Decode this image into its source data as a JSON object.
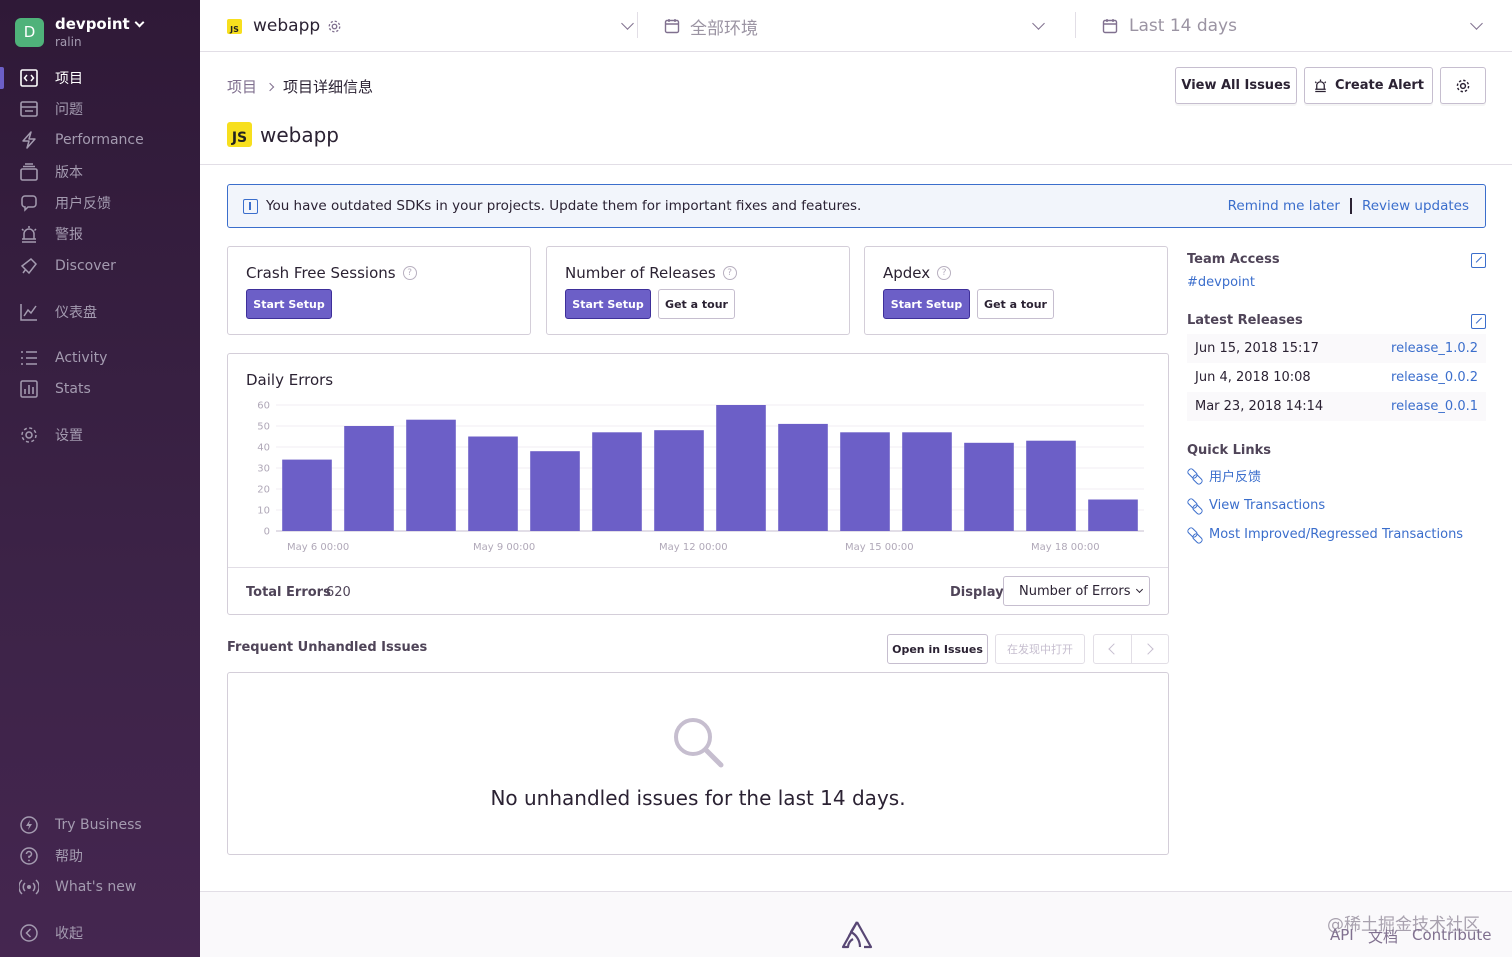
{
  "sidebar": {
    "org_initial": "D",
    "org_name": "devpoint",
    "username": "ralin",
    "items": [
      {
        "label": "项目",
        "icon": "project-icon"
      },
      {
        "label": "问题",
        "icon": "issues-icon"
      },
      {
        "label": "Performance",
        "icon": "lightning-icon"
      },
      {
        "label": "版本",
        "icon": "releases-icon"
      },
      {
        "label": "用户反馈",
        "icon": "feedback-icon"
      },
      {
        "label": "警报",
        "icon": "siren-icon"
      },
      {
        "label": "Discover",
        "icon": "telescope-icon"
      },
      {
        "label": "仪表盘",
        "icon": "graph-icon"
      },
      {
        "label": "Activity",
        "icon": "list-icon"
      },
      {
        "label": "Stats",
        "icon": "bar-chart-icon"
      },
      {
        "label": "设置",
        "icon": "gear-icon"
      }
    ],
    "bottom": [
      {
        "label": "Try Business",
        "icon": "lightning-circle-icon"
      },
      {
        "label": "帮助",
        "icon": "question-circle-icon"
      },
      {
        "label": "What's new",
        "icon": "broadcast-icon"
      },
      {
        "label": "收起",
        "icon": "collapse-icon"
      }
    ]
  },
  "topbar": {
    "project_badge": "JS",
    "project": "webapp",
    "environment": "全部环境",
    "time_range": "Last 14 days"
  },
  "header": {
    "breadcrumb_root": "项目",
    "breadcrumb_current": "项目详细信息",
    "project_badge": "JS",
    "title": "webapp",
    "view_all_issues": "View All Issues",
    "create_alert": "Create Alert"
  },
  "alert": {
    "message": "You have outdated SDKs in your projects. Update them for important fixes and features.",
    "remind_later": "Remind me later",
    "review_updates": "Review updates"
  },
  "cards": [
    {
      "title": "Crash Free Sessions",
      "primary": "Start Setup"
    },
    {
      "title": "Number of Releases",
      "primary": "Start Setup",
      "secondary": "Get a tour"
    },
    {
      "title": "Apdex",
      "primary": "Start Setup",
      "secondary": "Get a tour"
    }
  ],
  "chart_data": {
    "type": "bar",
    "title": "Daily Errors",
    "color": "#6c5fc7",
    "y_ticks": [
      "0",
      "10",
      "20",
      "30",
      "40",
      "50",
      "60"
    ],
    "ylim": [
      0,
      60
    ],
    "x_ticks": [
      "May 6 00:00",
      "May 9 00:00",
      "May 12 00:00",
      "May 15 00:00",
      "May 18 00:00"
    ],
    "values": [
      34,
      50,
      53,
      45,
      38,
      47,
      48,
      60,
      51,
      47,
      47,
      42,
      43,
      15
    ],
    "grid": true
  },
  "chart_footer": {
    "total_label": "Total Errors",
    "total_value": "620",
    "display_label": "Display",
    "display_value": "Number of Errors"
  },
  "issues": {
    "title": "Frequent Unhandled Issues",
    "open_in_issues": "Open in Issues",
    "open_in_discover": "在发现中打开",
    "empty_message": "No unhandled issues for the last 14 days."
  },
  "right": {
    "team_access_title": "Team Access",
    "team": "#devpoint",
    "latest_releases_title": "Latest Releases",
    "releases": [
      {
        "date": "Jun 15, 2018 15:17",
        "name": "release_1.0.2"
      },
      {
        "date": "Jun 4, 2018 10:08",
        "name": "release_0.0.2"
      },
      {
        "date": "Mar 23, 2018 14:14",
        "name": "release_0.0.1"
      }
    ],
    "quick_links_title": "Quick Links",
    "quick_links": [
      "用户反馈",
      "View Transactions",
      "Most Improved/Regressed Transactions"
    ]
  },
  "footer": {
    "api": "API",
    "docs": "文档",
    "contribute": "Contribute",
    "watermark": "@稀土掘金技术社区"
  }
}
